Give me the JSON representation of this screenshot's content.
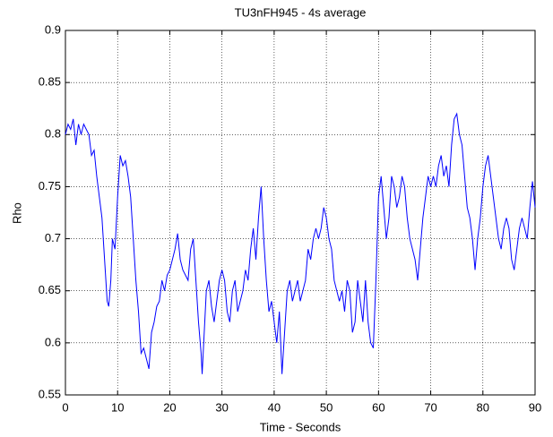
{
  "chart_data": {
    "type": "line",
    "title": "TU3nFH945 - 4s average",
    "xlabel": "Time - Seconds",
    "ylabel": "Rho",
    "x": [
      0,
      0.5,
      1,
      1.5,
      2,
      2.5,
      3,
      3.5,
      4,
      4.5,
      5,
      5.5,
      6,
      6.5,
      7,
      7.5,
      8,
      8.3,
      8.7,
      9,
      9.5,
      10,
      10.5,
      11,
      11.5,
      12,
      12.5,
      13,
      13.5,
      14,
      14.5,
      15,
      15.5,
      16,
      16.5,
      17,
      17.5,
      18,
      18.5,
      19,
      19.5,
      20,
      20.5,
      21,
      21.5,
      22,
      22.5,
      23,
      23.5,
      24,
      24.5,
      25,
      25.5,
      26,
      26.2,
      26.7,
      27,
      27.5,
      28,
      28.5,
      29,
      29.5,
      30,
      30.5,
      31,
      31.5,
      32,
      32.5,
      33,
      33.5,
      34,
      34.5,
      35,
      35.5,
      36,
      36.5,
      37,
      37.5,
      38,
      38.5,
      39,
      39.5,
      40,
      40.5,
      41,
      41.5,
      42,
      42.5,
      43,
      43.5,
      44,
      44.5,
      45,
      45.5,
      46,
      46.5,
      47,
      47.5,
      48,
      48.5,
      49,
      49.5,
      50,
      50.5,
      51,
      51.5,
      52,
      52.5,
      53,
      53.5,
      54,
      54.5,
      55,
      55.5,
      56,
      56.5,
      57,
      57.5,
      58,
      58.5,
      59,
      59.5,
      60,
      60.5,
      61,
      61.5,
      62,
      62.5,
      63,
      63.5,
      64,
      64.5,
      65,
      65.5,
      66,
      66.5,
      67,
      67.5,
      68,
      68.5,
      69,
      69.5,
      70,
      70.5,
      71,
      71.5,
      72,
      72.5,
      73,
      73.5,
      74,
      74.5,
      75,
      75.5,
      76,
      76.5,
      77,
      77.5,
      78,
      78.5,
      79,
      79.5,
      80,
      80.5,
      81,
      81.5,
      82,
      82.5,
      83,
      83.5,
      84,
      84.5,
      85,
      85.5,
      86,
      86.5,
      87,
      87.5,
      88,
      88.5,
      89,
      89.5,
      90
    ],
    "series": [
      {
        "color": "#0000ff",
        "values": [
          0.8,
          0.81,
          0.805,
          0.815,
          0.79,
          0.81,
          0.8,
          0.81,
          0.805,
          0.8,
          0.78,
          0.785,
          0.76,
          0.74,
          0.72,
          0.68,
          0.64,
          0.635,
          0.66,
          0.7,
          0.69,
          0.74,
          0.78,
          0.77,
          0.775,
          0.76,
          0.74,
          0.7,
          0.66,
          0.63,
          0.59,
          0.595,
          0.585,
          0.575,
          0.61,
          0.62,
          0.635,
          0.64,
          0.66,
          0.65,
          0.665,
          0.67,
          0.68,
          0.69,
          0.705,
          0.68,
          0.67,
          0.665,
          0.66,
          0.69,
          0.7,
          0.66,
          0.62,
          0.59,
          0.57,
          0.62,
          0.65,
          0.66,
          0.635,
          0.62,
          0.64,
          0.66,
          0.67,
          0.66,
          0.63,
          0.62,
          0.65,
          0.66,
          0.63,
          0.64,
          0.65,
          0.67,
          0.66,
          0.69,
          0.71,
          0.68,
          0.72,
          0.75,
          0.7,
          0.66,
          0.63,
          0.64,
          0.62,
          0.6,
          0.63,
          0.57,
          0.61,
          0.65,
          0.66,
          0.64,
          0.65,
          0.66,
          0.64,
          0.65,
          0.66,
          0.69,
          0.68,
          0.7,
          0.71,
          0.7,
          0.71,
          0.73,
          0.72,
          0.7,
          0.69,
          0.66,
          0.65,
          0.64,
          0.65,
          0.63,
          0.66,
          0.65,
          0.61,
          0.62,
          0.66,
          0.64,
          0.62,
          0.66,
          0.62,
          0.6,
          0.595,
          0.66,
          0.74,
          0.76,
          0.73,
          0.7,
          0.72,
          0.76,
          0.75,
          0.73,
          0.74,
          0.76,
          0.75,
          0.72,
          0.7,
          0.69,
          0.68,
          0.66,
          0.69,
          0.72,
          0.74,
          0.76,
          0.75,
          0.76,
          0.75,
          0.77,
          0.78,
          0.76,
          0.77,
          0.75,
          0.79,
          0.815,
          0.82,
          0.8,
          0.79,
          0.76,
          0.73,
          0.72,
          0.7,
          0.67,
          0.7,
          0.72,
          0.75,
          0.77,
          0.78,
          0.76,
          0.74,
          0.72,
          0.7,
          0.69,
          0.71,
          0.72,
          0.71,
          0.68,
          0.67,
          0.69,
          0.71,
          0.72,
          0.71,
          0.7,
          0.73,
          0.755,
          0.73
        ]
      }
    ],
    "xlim": [
      0,
      90
    ],
    "xticks": [
      0,
      10,
      20,
      30,
      40,
      50,
      60,
      70,
      80,
      90
    ],
    "ylim": [
      0.55,
      0.9
    ],
    "yticks": [
      0.55,
      0.6,
      0.65,
      0.7,
      0.75,
      0.8,
      0.85,
      0.9
    ],
    "grid": true
  }
}
